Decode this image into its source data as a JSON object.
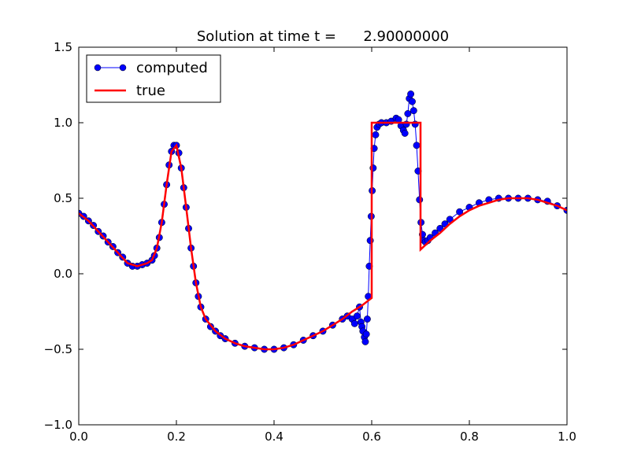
{
  "chart_data": {
    "type": "line",
    "title": "Solution at time t =      2.90000000",
    "xlabel": "",
    "ylabel": "",
    "xlim": [
      0.0,
      1.0
    ],
    "ylim": [
      -1.0,
      1.5
    ],
    "x_ticks": [
      "0.0",
      "0.2",
      "0.4",
      "0.6",
      "0.8",
      "1.0"
    ],
    "x_tick_values": [
      0.0,
      0.2,
      0.4,
      0.6,
      0.8,
      1.0
    ],
    "y_ticks": [
      "−1.0",
      "−0.5",
      "0.0",
      "0.5",
      "1.0",
      "1.5"
    ],
    "y_tick_values": [
      -1.0,
      -0.5,
      0.0,
      0.5,
      1.0,
      1.5
    ],
    "grid": false,
    "legend_position": "top-left",
    "series": [
      {
        "name": "computed",
        "style": "line-with-circle-markers",
        "color": "#0000ff",
        "x": [
          0.0,
          0.01,
          0.02,
          0.03,
          0.04,
          0.05,
          0.06,
          0.07,
          0.08,
          0.09,
          0.1,
          0.11,
          0.12,
          0.13,
          0.14,
          0.15,
          0.155,
          0.16,
          0.165,
          0.17,
          0.175,
          0.18,
          0.185,
          0.19,
          0.195,
          0.2,
          0.205,
          0.21,
          0.215,
          0.22,
          0.225,
          0.23,
          0.235,
          0.24,
          0.245,
          0.25,
          0.26,
          0.27,
          0.28,
          0.29,
          0.3,
          0.32,
          0.34,
          0.36,
          0.38,
          0.4,
          0.42,
          0.44,
          0.46,
          0.48,
          0.5,
          0.52,
          0.54,
          0.55,
          0.56,
          0.565,
          0.57,
          0.575,
          0.578,
          0.58,
          0.582,
          0.585,
          0.587,
          0.589,
          0.591,
          0.593,
          0.595,
          0.597,
          0.599,
          0.601,
          0.603,
          0.605,
          0.608,
          0.611,
          0.615,
          0.62,
          0.63,
          0.64,
          0.65,
          0.655,
          0.66,
          0.665,
          0.668,
          0.671,
          0.674,
          0.677,
          0.68,
          0.683,
          0.686,
          0.689,
          0.692,
          0.695,
          0.698,
          0.701,
          0.704,
          0.707,
          0.71,
          0.715,
          0.72,
          0.73,
          0.74,
          0.75,
          0.76,
          0.78,
          0.8,
          0.82,
          0.84,
          0.86,
          0.88,
          0.9,
          0.92,
          0.94,
          0.96,
          0.98,
          1.0
        ],
        "y": [
          0.4,
          0.38,
          0.35,
          0.32,
          0.28,
          0.25,
          0.21,
          0.18,
          0.14,
          0.11,
          0.07,
          0.05,
          0.05,
          0.06,
          0.07,
          0.09,
          0.12,
          0.17,
          0.24,
          0.34,
          0.46,
          0.59,
          0.72,
          0.81,
          0.85,
          0.85,
          0.8,
          0.7,
          0.57,
          0.44,
          0.3,
          0.17,
          0.05,
          -0.06,
          -0.15,
          -0.22,
          -0.3,
          -0.35,
          -0.38,
          -0.41,
          -0.43,
          -0.46,
          -0.48,
          -0.49,
          -0.5,
          -0.5,
          -0.49,
          -0.47,
          -0.44,
          -0.41,
          -0.38,
          -0.34,
          -0.3,
          -0.28,
          -0.3,
          -0.33,
          -0.28,
          -0.22,
          -0.32,
          -0.35,
          -0.38,
          -0.42,
          -0.45,
          -0.4,
          -0.3,
          -0.15,
          0.05,
          0.22,
          0.38,
          0.55,
          0.7,
          0.83,
          0.92,
          0.97,
          0.99,
          1.0,
          1.0,
          1.01,
          1.03,
          1.02,
          0.98,
          0.95,
          0.93,
          0.99,
          1.06,
          1.16,
          1.19,
          1.14,
          1.08,
          0.99,
          0.85,
          0.68,
          0.49,
          0.34,
          0.26,
          0.22,
          0.21,
          0.22,
          0.24,
          0.27,
          0.3,
          0.33,
          0.36,
          0.41,
          0.44,
          0.47,
          0.49,
          0.5,
          0.5,
          0.5,
          0.5,
          0.49,
          0.48,
          0.45,
          0.42
        ]
      },
      {
        "name": "true",
        "style": "line",
        "color": "#ff0000",
        "x": [
          0.0,
          0.02,
          0.04,
          0.06,
          0.08,
          0.1,
          0.12,
          0.14,
          0.15,
          0.16,
          0.17,
          0.18,
          0.19,
          0.2,
          0.21,
          0.22,
          0.23,
          0.24,
          0.25,
          0.26,
          0.28,
          0.3,
          0.32,
          0.34,
          0.36,
          0.38,
          0.4,
          0.42,
          0.44,
          0.46,
          0.48,
          0.5,
          0.52,
          0.54,
          0.56,
          0.58,
          0.6,
          0.6,
          0.6,
          0.62,
          0.64,
          0.66,
          0.68,
          0.7,
          0.7,
          0.7,
          0.72,
          0.74,
          0.76,
          0.78,
          0.8,
          0.82,
          0.84,
          0.86,
          0.88,
          0.9,
          0.92,
          0.94,
          0.96,
          0.98,
          1.0
        ],
        "y": [
          0.4,
          0.35,
          0.28,
          0.21,
          0.14,
          0.07,
          0.05,
          0.07,
          0.09,
          0.17,
          0.34,
          0.59,
          0.81,
          0.85,
          0.7,
          0.44,
          0.17,
          -0.06,
          -0.22,
          -0.3,
          -0.38,
          -0.43,
          -0.46,
          -0.48,
          -0.49,
          -0.5,
          -0.5,
          -0.49,
          -0.47,
          -0.44,
          -0.41,
          -0.38,
          -0.34,
          -0.3,
          -0.25,
          -0.21,
          -0.16,
          0.5,
          1.0,
          1.0,
          1.0,
          1.0,
          1.0,
          1.0,
          0.6,
          0.16,
          0.22,
          0.27,
          0.33,
          0.38,
          0.42,
          0.45,
          0.47,
          0.49,
          0.5,
          0.5,
          0.5,
          0.49,
          0.47,
          0.45,
          0.42
        ]
      }
    ]
  }
}
